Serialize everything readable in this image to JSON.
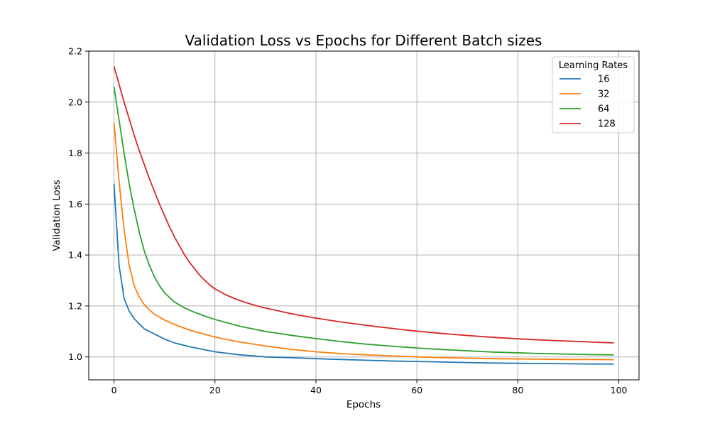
{
  "chart_data": {
    "type": "line",
    "title": "Validation Loss vs Epochs for Different Batch sizes",
    "xlabel": "Epochs",
    "ylabel": "Validation Loss",
    "xlim": [
      -5,
      104
    ],
    "ylim": [
      0.91,
      2.2
    ],
    "xticks": [
      0,
      20,
      40,
      60,
      80,
      100
    ],
    "yticks": [
      1.0,
      1.2,
      1.4,
      1.6,
      1.8,
      2.0,
      2.2
    ],
    "grid": true,
    "legend": {
      "title": "Learning Rates",
      "placement": "upper-right"
    },
    "series": [
      {
        "name": "16",
        "color": "#1f77b4",
        "points": [
          [
            0,
            1.68
          ],
          [
            1,
            1.36
          ],
          [
            2,
            1.23
          ],
          [
            3,
            1.18
          ],
          [
            4,
            1.15
          ],
          [
            5,
            1.13
          ],
          [
            6,
            1.11
          ],
          [
            8,
            1.09
          ],
          [
            10,
            1.07
          ],
          [
            12,
            1.055
          ],
          [
            15,
            1.04
          ],
          [
            20,
            1.02
          ],
          [
            25,
            1.008
          ],
          [
            30,
            1.0
          ],
          [
            35,
            0.997
          ],
          [
            40,
            0.993
          ],
          [
            45,
            0.99
          ],
          [
            50,
            0.987
          ],
          [
            55,
            0.984
          ],
          [
            60,
            0.982
          ],
          [
            65,
            0.98
          ],
          [
            70,
            0.978
          ],
          [
            75,
            0.976
          ],
          [
            80,
            0.975
          ],
          [
            85,
            0.974
          ],
          [
            90,
            0.973
          ],
          [
            95,
            0.972
          ],
          [
            99,
            0.972
          ]
        ]
      },
      {
        "name": "32",
        "color": "#ff7f0e",
        "points": [
          [
            0,
            1.92
          ],
          [
            1,
            1.69
          ],
          [
            2,
            1.5
          ],
          [
            3,
            1.36
          ],
          [
            4,
            1.28
          ],
          [
            5,
            1.235
          ],
          [
            6,
            1.205
          ],
          [
            7,
            1.185
          ],
          [
            8,
            1.168
          ],
          [
            10,
            1.145
          ],
          [
            12,
            1.127
          ],
          [
            15,
            1.105
          ],
          [
            20,
            1.078
          ],
          [
            25,
            1.058
          ],
          [
            30,
            1.043
          ],
          [
            35,
            1.03
          ],
          [
            40,
            1.02
          ],
          [
            45,
            1.013
          ],
          [
            50,
            1.008
          ],
          [
            55,
            1.004
          ],
          [
            60,
            1.0
          ],
          [
            65,
            0.997
          ],
          [
            70,
            0.995
          ],
          [
            75,
            0.993
          ],
          [
            80,
            0.992
          ],
          [
            85,
            0.991
          ],
          [
            90,
            0.99
          ],
          [
            95,
            0.99
          ],
          [
            99,
            0.989
          ]
        ]
      },
      {
        "name": "64",
        "color": "#2ca02c",
        "points": [
          [
            0,
            2.06
          ],
          [
            1,
            1.93
          ],
          [
            2,
            1.8
          ],
          [
            3,
            1.68
          ],
          [
            4,
            1.58
          ],
          [
            5,
            1.49
          ],
          [
            6,
            1.415
          ],
          [
            7,
            1.36
          ],
          [
            8,
            1.315
          ],
          [
            9,
            1.28
          ],
          [
            10,
            1.252
          ],
          [
            12,
            1.215
          ],
          [
            14,
            1.192
          ],
          [
            16,
            1.175
          ],
          [
            18,
            1.16
          ],
          [
            20,
            1.147
          ],
          [
            25,
            1.12
          ],
          [
            30,
            1.1
          ],
          [
            35,
            1.085
          ],
          [
            40,
            1.072
          ],
          [
            45,
            1.06
          ],
          [
            50,
            1.05
          ],
          [
            55,
            1.042
          ],
          [
            60,
            1.035
          ],
          [
            65,
            1.029
          ],
          [
            70,
            1.024
          ],
          [
            75,
            1.019
          ],
          [
            80,
            1.016
          ],
          [
            85,
            1.013
          ],
          [
            90,
            1.011
          ],
          [
            95,
            1.009
          ],
          [
            99,
            1.008
          ]
        ]
      },
      {
        "name": "128",
        "color": "#d62728",
        "points": [
          [
            0,
            2.14
          ],
          [
            1,
            2.07
          ],
          [
            2,
            2.0
          ],
          [
            3,
            1.935
          ],
          [
            4,
            1.87
          ],
          [
            5,
            1.81
          ],
          [
            6,
            1.755
          ],
          [
            7,
            1.7
          ],
          [
            8,
            1.65
          ],
          [
            9,
            1.6
          ],
          [
            10,
            1.555
          ],
          [
            11,
            1.51
          ],
          [
            12,
            1.47
          ],
          [
            13,
            1.435
          ],
          [
            14,
            1.4
          ],
          [
            15,
            1.37
          ],
          [
            16,
            1.345
          ],
          [
            17,
            1.32
          ],
          [
            18,
            1.3
          ],
          [
            19,
            1.282
          ],
          [
            20,
            1.267
          ],
          [
            22,
            1.245
          ],
          [
            24,
            1.228
          ],
          [
            26,
            1.214
          ],
          [
            28,
            1.202
          ],
          [
            30,
            1.192
          ],
          [
            35,
            1.17
          ],
          [
            40,
            1.152
          ],
          [
            45,
            1.137
          ],
          [
            50,
            1.124
          ],
          [
            55,
            1.112
          ],
          [
            60,
            1.101
          ],
          [
            65,
            1.092
          ],
          [
            70,
            1.084
          ],
          [
            75,
            1.077
          ],
          [
            80,
            1.071
          ],
          [
            85,
            1.066
          ],
          [
            90,
            1.062
          ],
          [
            95,
            1.058
          ],
          [
            99,
            1.055
          ]
        ]
      }
    ]
  }
}
